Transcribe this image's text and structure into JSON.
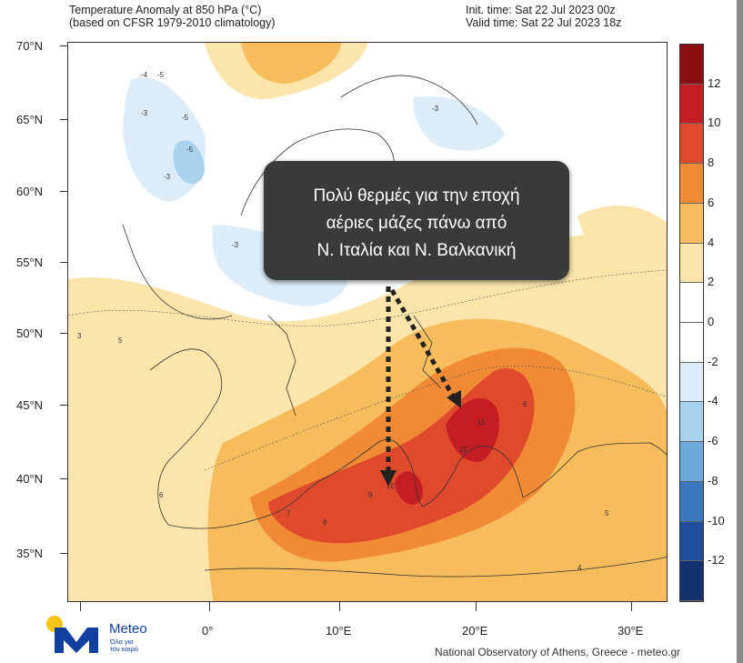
{
  "header": {
    "title_line1": "Temperature Anomaly at 850 hPa (°C)",
    "title_line2": "(based on CFSR 1979-2010 climatology)",
    "init_time": "Init. time: Sat 22 Jul 2023 00z",
    "valid_time": "Valid time: Sat 22 Jul 2023 18z"
  },
  "axes": {
    "latitudes": [
      "70°N",
      "65°N",
      "60°N",
      "55°N",
      "50°N",
      "45°N",
      "40°N",
      "35°N"
    ],
    "longitudes": [
      "0°",
      "10°E",
      "20°E",
      "30°E"
    ]
  },
  "colorbar": {
    "labels": [
      "12",
      "10",
      "8",
      "6",
      "4",
      "2",
      "0",
      "-2",
      "-4",
      "-6",
      "-8",
      "-10",
      "-12"
    ],
    "colors": [
      "#8b0f12",
      "#c41e24",
      "#e04a2c",
      "#f08a35",
      "#f7bd5c",
      "#fbe5ab",
      "#ffffff",
      "#ffffff",
      "#dcedf9",
      "#a8d2ee",
      "#6ea9dc",
      "#3a78c0",
      "#1e4e9c",
      "#14306e"
    ]
  },
  "callout": {
    "lines": [
      "Πολύ θερμές για την εποχή",
      "αέριες μάζες πάνω από",
      "Ν. Ιταλία και Ν. Βαλκανική"
    ]
  },
  "logo": {
    "name": "Meteo",
    "tagline_1": "Όλα για",
    "tagline_2": "τον καιρό"
  },
  "credit": "National Observatory of Athens, Greece - meteo.gr",
  "anomaly_labels": [
    "-4",
    "-5",
    "-3",
    "-5",
    "-3",
    "-3",
    "-3",
    "3",
    "4",
    "5",
    "6",
    "7",
    "8",
    "9",
    "10",
    "11",
    "12"
  ]
}
